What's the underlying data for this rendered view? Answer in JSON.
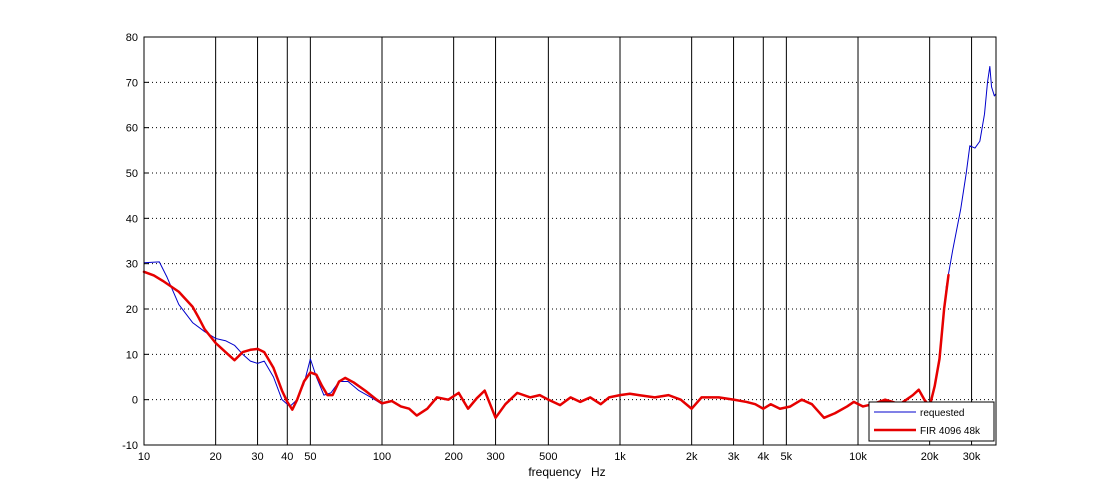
{
  "chart_data": {
    "type": "line",
    "title": "",
    "xlabel": "frequency   Hz",
    "ylabel": "",
    "xscale": "log",
    "xlim": [
      10,
      38000
    ],
    "ylim": [
      -10,
      80
    ],
    "grid": {
      "x": "solid vertical lines at labeled ticks",
      "y": "dotted horizontal lines"
    },
    "legend_position": "bottom-right",
    "x_tick_values": [
      10,
      20,
      30,
      40,
      50,
      100,
      200,
      300,
      500,
      1000,
      2000,
      3000,
      4000,
      5000,
      10000,
      20000,
      30000
    ],
    "x_tick_labels": [
      "10",
      "20",
      "30",
      "40",
      "50",
      "100",
      "200",
      "300",
      "500",
      "1k",
      "2k",
      "3k",
      "4k",
      "5k",
      "10k",
      "20k",
      "30k"
    ],
    "y_tick_values": [
      -10,
      0,
      10,
      20,
      30,
      40,
      50,
      60,
      70,
      80
    ],
    "y_tick_labels": [
      "-10",
      "0",
      "10",
      "20",
      "30",
      "40",
      "50",
      "60",
      "70",
      "80"
    ],
    "series": [
      {
        "name": "requested",
        "color": "#0000cc",
        "points": [
          [
            10,
            30.2
          ],
          [
            11.6,
            30.4
          ],
          [
            12.5,
            27
          ],
          [
            14,
            21
          ],
          [
            16,
            17
          ],
          [
            18,
            15
          ],
          [
            20,
            13.5
          ],
          [
            22,
            13
          ],
          [
            24,
            12
          ],
          [
            26,
            10
          ],
          [
            28,
            8.5
          ],
          [
            30,
            8
          ],
          [
            32,
            8.5
          ],
          [
            35,
            5
          ],
          [
            38,
            0
          ],
          [
            41,
            -1.5
          ],
          [
            44,
            0
          ],
          [
            47,
            3.5
          ],
          [
            50,
            9
          ],
          [
            53,
            5
          ],
          [
            57,
            1
          ],
          [
            61,
            1.5
          ],
          [
            66,
            4
          ],
          [
            72,
            4
          ],
          [
            80,
            2
          ],
          [
            90,
            0.5
          ],
          [
            100,
            -1
          ],
          [
            110,
            -0.3
          ],
          [
            120,
            -1.5
          ],
          [
            130,
            -2
          ],
          [
            140,
            -3.5
          ],
          [
            155,
            -2
          ],
          [
            170,
            0.5
          ],
          [
            190,
            0
          ],
          [
            210,
            1.5
          ],
          [
            230,
            -2
          ],
          [
            250,
            0.3
          ],
          [
            270,
            2
          ],
          [
            300,
            -4
          ],
          [
            330,
            -1
          ],
          [
            370,
            1.5
          ],
          [
            420,
            0.5
          ],
          [
            460,
            1
          ],
          [
            500,
            0
          ],
          [
            560,
            -1.2
          ],
          [
            620,
            0.5
          ],
          [
            680,
            -0.5
          ],
          [
            750,
            0.5
          ],
          [
            830,
            -1
          ],
          [
            900,
            0.5
          ],
          [
            1000,
            1
          ],
          [
            1100,
            1.3
          ],
          [
            1200,
            1
          ],
          [
            1400,
            0.5
          ],
          [
            1600,
            1
          ],
          [
            1800,
            0
          ],
          [
            2000,
            -2
          ],
          [
            2200,
            0.5
          ],
          [
            2600,
            0.5
          ],
          [
            3000,
            0
          ],
          [
            3400,
            -0.5
          ],
          [
            3700,
            -1
          ],
          [
            4000,
            -2
          ],
          [
            4300,
            -1
          ],
          [
            4700,
            -2
          ],
          [
            5200,
            -1.5
          ],
          [
            5800,
            0
          ],
          [
            6400,
            -1
          ],
          [
            7200,
            -4
          ],
          [
            8000,
            -3
          ],
          [
            9000,
            -1.5
          ],
          [
            9600,
            -0.5
          ],
          [
            10500,
            -1.5
          ],
          [
            11500,
            -1
          ],
          [
            13000,
            0
          ],
          [
            15000,
            -1
          ],
          [
            17000,
            1
          ],
          [
            18000,
            2
          ],
          [
            19000,
            0
          ],
          [
            20000,
            -1.5
          ],
          [
            21000,
            3
          ],
          [
            22000,
            9
          ],
          [
            23500,
            25
          ],
          [
            25000,
            33
          ],
          [
            27000,
            42
          ],
          [
            28500,
            50
          ],
          [
            29500,
            56
          ],
          [
            31000,
            55.5
          ],
          [
            32500,
            57
          ],
          [
            34000,
            63
          ],
          [
            35000,
            70
          ],
          [
            35800,
            73.5
          ],
          [
            36400,
            69
          ],
          [
            36900,
            68
          ],
          [
            37400,
            67
          ],
          [
            38000,
            67.5
          ]
        ]
      },
      {
        "name": "FIR 4096 48k",
        "color": "#e60000",
        "points": [
          [
            10,
            28.2
          ],
          [
            11,
            27.4
          ],
          [
            12,
            26.2
          ],
          [
            14,
            23.8
          ],
          [
            16,
            20.5
          ],
          [
            17,
            18
          ],
          [
            18,
            15.5
          ],
          [
            20,
            12.5
          ],
          [
            22,
            10.5
          ],
          [
            24,
            8.7
          ],
          [
            26,
            10.5
          ],
          [
            28,
            11
          ],
          [
            30,
            11.2
          ],
          [
            32,
            10.5
          ],
          [
            35,
            7
          ],
          [
            38,
            2
          ],
          [
            40,
            -0.5
          ],
          [
            42,
            -2.2
          ],
          [
            44,
            0
          ],
          [
            47,
            4
          ],
          [
            50,
            6
          ],
          [
            53,
            5.5
          ],
          [
            56,
            3
          ],
          [
            59,
            1
          ],
          [
            62,
            1
          ],
          [
            66,
            4
          ],
          [
            70,
            4.8
          ],
          [
            76,
            3.8
          ],
          [
            85,
            2
          ],
          [
            95,
            0
          ],
          [
            100,
            -0.8
          ],
          [
            110,
            -0.3
          ],
          [
            120,
            -1.5
          ],
          [
            130,
            -2
          ],
          [
            140,
            -3.5
          ],
          [
            155,
            -2
          ],
          [
            170,
            0.5
          ],
          [
            190,
            0
          ],
          [
            210,
            1.5
          ],
          [
            230,
            -2
          ],
          [
            250,
            0.3
          ],
          [
            270,
            2
          ],
          [
            300,
            -4
          ],
          [
            330,
            -1
          ],
          [
            370,
            1.5
          ],
          [
            420,
            0.5
          ],
          [
            460,
            1
          ],
          [
            500,
            0
          ],
          [
            560,
            -1.2
          ],
          [
            620,
            0.5
          ],
          [
            680,
            -0.5
          ],
          [
            750,
            0.5
          ],
          [
            830,
            -1
          ],
          [
            900,
            0.5
          ],
          [
            1000,
            1
          ],
          [
            1100,
            1.3
          ],
          [
            1200,
            1
          ],
          [
            1400,
            0.5
          ],
          [
            1600,
            1
          ],
          [
            1800,
            0
          ],
          [
            2000,
            -2
          ],
          [
            2200,
            0.5
          ],
          [
            2600,
            0.5
          ],
          [
            3000,
            0
          ],
          [
            3400,
            -0.5
          ],
          [
            3700,
            -1
          ],
          [
            4000,
            -2
          ],
          [
            4300,
            -1
          ],
          [
            4700,
            -2
          ],
          [
            5200,
            -1.5
          ],
          [
            5800,
            0
          ],
          [
            6400,
            -1
          ],
          [
            7200,
            -4
          ],
          [
            8000,
            -3
          ],
          [
            9000,
            -1.5
          ],
          [
            9600,
            -0.5
          ],
          [
            10500,
            -1.5
          ],
          [
            11500,
            -1
          ],
          [
            13000,
            0
          ],
          [
            15000,
            -1
          ],
          [
            17000,
            1
          ],
          [
            18000,
            2.2
          ],
          [
            19000,
            0
          ],
          [
            20000,
            -1.5
          ],
          [
            21000,
            3
          ],
          [
            22000,
            9
          ],
          [
            23000,
            20
          ],
          [
            24000,
            27.5
          ]
        ]
      }
    ]
  }
}
